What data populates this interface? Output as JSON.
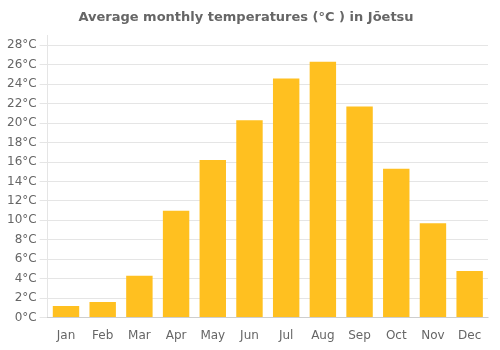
{
  "chart_data": {
    "type": "bar",
    "title": "Average monthly temperatures (°C ) in Jōetsu",
    "categories": [
      "Jan",
      "Feb",
      "Mar",
      "Apr",
      "May",
      "Jun",
      "Jul",
      "Aug",
      "Sep",
      "Oct",
      "Nov",
      "Dec"
    ],
    "values": [
      1.2,
      1.6,
      4.3,
      11.0,
      16.2,
      20.3,
      24.6,
      26.3,
      21.7,
      15.3,
      9.7,
      4.8
    ],
    "color": "#FFC020",
    "ylim": [
      0,
      29
    ],
    "yticks": [
      {
        "value": 0,
        "label": "0°C"
      },
      {
        "value": 2,
        "label": "2°C"
      },
      {
        "value": 4,
        "label": "4°C"
      },
      {
        "value": 6,
        "label": "6°C"
      },
      {
        "value": 8,
        "label": "8°C"
      },
      {
        "value": 10,
        "label": "10°C"
      },
      {
        "value": 12,
        "label": "12°C"
      },
      {
        "value": 14,
        "label": "14°C"
      },
      {
        "value": 16,
        "label": "16°C"
      },
      {
        "value": 18,
        "label": "18°C"
      },
      {
        "value": 20,
        "label": "20°C"
      },
      {
        "value": 22,
        "label": "22°C"
      },
      {
        "value": 24,
        "label": "24°C"
      },
      {
        "value": 26,
        "label": "26°C"
      },
      {
        "value": 28,
        "label": "28°C"
      }
    ],
    "grid": true
  }
}
